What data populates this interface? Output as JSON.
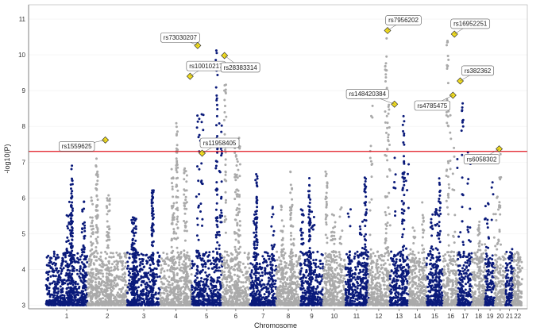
{
  "chart_data": {
    "type": "scatter",
    "subtype": "manhattan",
    "title": "",
    "xlabel": "Chromosome",
    "ylabel": "-log10(P)",
    "ylim": [
      2.9,
      11.4
    ],
    "yticks": [
      3,
      4,
      5,
      6,
      7,
      8,
      9,
      10,
      11
    ],
    "significance_threshold": 7.3,
    "colors": {
      "odd": "#0a1a7a",
      "even": "#aaaaaa",
      "threshold": "#e0141e",
      "lead": "#f2dd1e"
    },
    "chromosomes": [
      {
        "label": "1",
        "peak": 6.9
      },
      {
        "label": "2",
        "peak": 7.1
      },
      {
        "label": "3",
        "peak": 6.3
      },
      {
        "label": "4",
        "peak": 8.1
      },
      {
        "label": "5",
        "peak": 10.2
      },
      {
        "label": "6",
        "peak": 9.3
      },
      {
        "label": "7",
        "peak": 6.7
      },
      {
        "label": "8",
        "peak": 6.8
      },
      {
        "label": "9",
        "peak": 6.6
      },
      {
        "label": "10",
        "peak": 6.8
      },
      {
        "label": "11",
        "peak": 6.6
      },
      {
        "label": "12",
        "peak": 10.6
      },
      {
        "label": "13",
        "peak": 8.5
      },
      {
        "label": "14",
        "peak": 5.9
      },
      {
        "label": "15",
        "peak": 6.6
      },
      {
        "label": "16",
        "peak": 10.5
      },
      {
        "label": "17",
        "peak": 8.7
      },
      {
        "label": "18",
        "peak": 5.4
      },
      {
        "label": "19",
        "peak": 6.9
      },
      {
        "label": "20",
        "peak": 7.3
      },
      {
        "label": "21",
        "peak": 4.6
      },
      {
        "label": "22",
        "peak": 4.5
      }
    ],
    "lead_snps": [
      {
        "id": "rs1559625",
        "chromosome": "2",
        "pos": 0.45,
        "p": 7.62
      },
      {
        "id": "rs73030207",
        "chromosome": "5",
        "pos": 0.2,
        "p": 10.26
      },
      {
        "id": "rs10010217",
        "chromosome": "4",
        "pos": 0.95,
        "p": 9.4
      },
      {
        "id": "rs28383314",
        "chromosome": "6",
        "pos": 0.1,
        "p": 9.98
      },
      {
        "id": "rs11958405",
        "chromosome": "5",
        "pos": 0.35,
        "p": 7.25
      },
      {
        "id": "rs7956202",
        "chromosome": "12",
        "pos": 0.9,
        "p": 10.68
      },
      {
        "id": "rs148420384",
        "chromosome": "13",
        "pos": 0.25,
        "p": 8.62
      },
      {
        "id": "rs16952251",
        "chromosome": "16",
        "pos": 0.75,
        "p": 10.58
      },
      {
        "id": "rs4785475",
        "chromosome": "16",
        "pos": 0.65,
        "p": 8.87
      },
      {
        "id": "rs382362",
        "chromosome": "17",
        "pos": 0.15,
        "p": 9.27
      },
      {
        "id": "rs6058302",
        "chromosome": "20",
        "pos": 0.4,
        "p": 7.37
      }
    ]
  }
}
